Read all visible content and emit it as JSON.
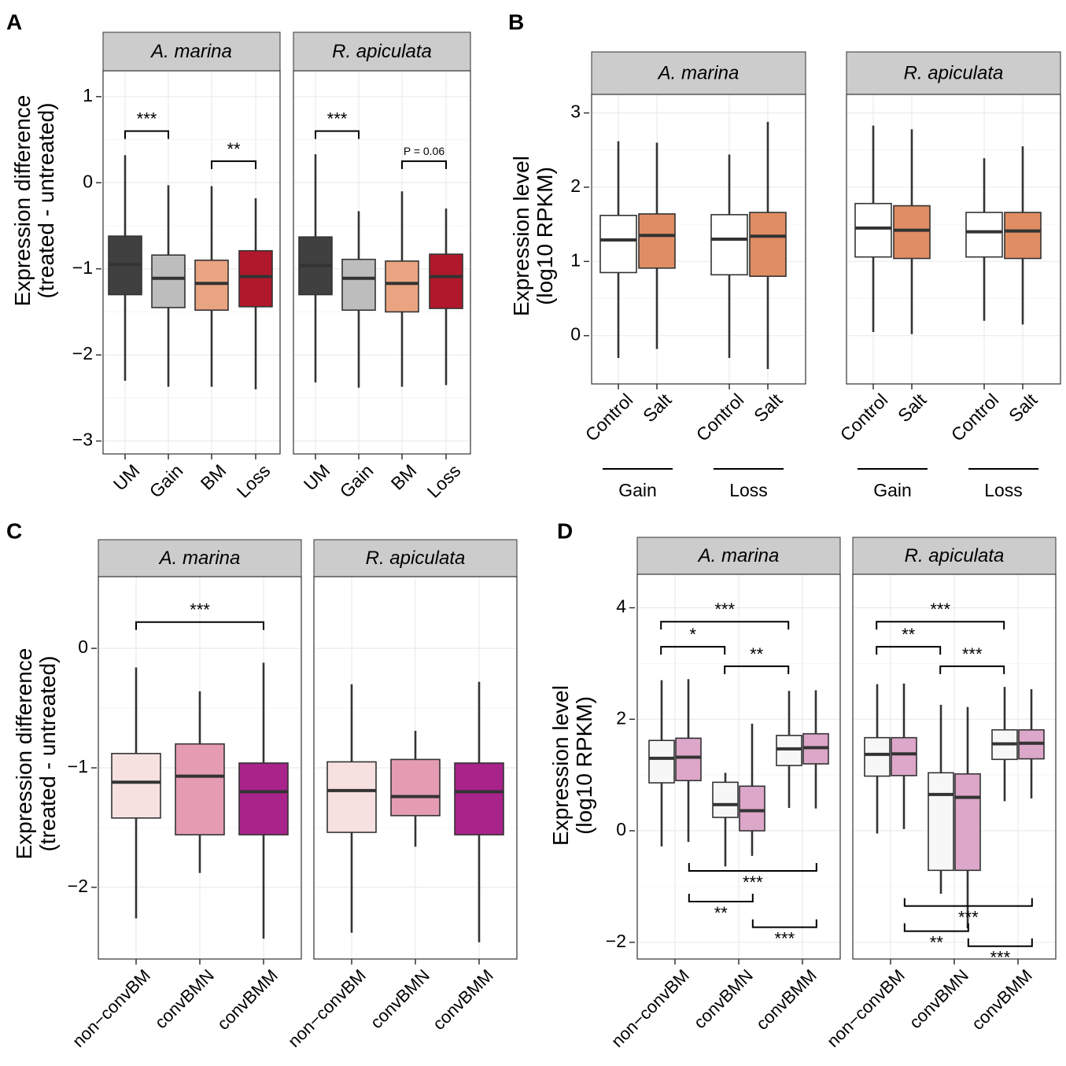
{
  "figure": {
    "colors": {
      "strip_bg": "#cccccc",
      "panel_border": "#333333",
      "grid": "#ebebeb",
      "box_stroke": "#333333"
    }
  },
  "chart_data": [
    {
      "panel_letter": "A",
      "type": "boxplot",
      "ylabel_line1": "Expression difference",
      "ylabel_line2": "(treated - untreated)",
      "ylim": [
        -3.15,
        1.3
      ],
      "yticks": [
        1,
        0,
        -1,
        -2,
        -3
      ],
      "ytick_labels": [
        "1",
        "0",
        "−1",
        "−2",
        "−3"
      ],
      "categories": [
        "UM",
        "Gain",
        "BM",
        "Loss"
      ],
      "facets": [
        {
          "title": "A. marina",
          "boxes": [
            {
              "cat": "UM",
              "whisker_low": -2.3,
              "q1": -1.3,
              "median": -0.95,
              "q3": -0.62,
              "whisker_high": 0.32,
              "color": "#404040"
            },
            {
              "cat": "Gain",
              "whisker_low": -2.37,
              "q1": -1.45,
              "median": -1.11,
              "q3": -0.84,
              "whisker_high": -0.03,
              "color": "#bdbdbd"
            },
            {
              "cat": "BM",
              "whisker_low": -2.37,
              "q1": -1.48,
              "median": -1.17,
              "q3": -0.9,
              "whisker_high": -0.04,
              "color": "#e9a482"
            },
            {
              "cat": "Loss",
              "whisker_low": -2.4,
              "q1": -1.44,
              "median": -1.09,
              "q3": -0.79,
              "whisker_high": -0.18,
              "color": "#b2182b"
            }
          ],
          "brackets": [
            {
              "from": "UM",
              "to": "Gain",
              "y": 0.6,
              "label": "***"
            },
            {
              "from": "BM",
              "to": "Loss",
              "y": 0.25,
              "label": "**"
            }
          ]
        },
        {
          "title": "R. apiculata",
          "boxes": [
            {
              "cat": "UM",
              "whisker_low": -2.32,
              "q1": -1.3,
              "median": -0.96,
              "q3": -0.63,
              "whisker_high": 0.33,
              "color": "#404040"
            },
            {
              "cat": "Gain",
              "whisker_low": -2.38,
              "q1": -1.48,
              "median": -1.11,
              "q3": -0.89,
              "whisker_high": -0.33,
              "color": "#bdbdbd"
            },
            {
              "cat": "BM",
              "whisker_low": -2.37,
              "q1": -1.5,
              "median": -1.17,
              "q3": -0.91,
              "whisker_high": -0.1,
              "color": "#e9a482"
            },
            {
              "cat": "Loss",
              "whisker_low": -2.35,
              "q1": -1.46,
              "median": -1.09,
              "q3": -0.83,
              "whisker_high": -0.3,
              "color": "#b2182b"
            }
          ],
          "brackets": [
            {
              "from": "UM",
              "to": "Gain",
              "y": 0.6,
              "label": "***"
            },
            {
              "from": "BM",
              "to": "Loss",
              "y": 0.25,
              "label": "P = 0.06",
              "small": true
            }
          ]
        }
      ]
    },
    {
      "panel_letter": "B",
      "type": "boxplot",
      "ylabel_line1": "Expression level",
      "ylabel_line2": "(log10 RPKM)",
      "ylim": [
        -0.65,
        3.25
      ],
      "yticks": [
        3,
        2,
        1,
        0
      ],
      "ytick_labels": [
        "3",
        "2",
        "1",
        "0"
      ],
      "categories": [
        "Control",
        "Salt",
        "Control",
        "Salt"
      ],
      "groups": [
        "Gain",
        "Loss"
      ],
      "facets": [
        {
          "title": "A. marina",
          "boxes": [
            {
              "cat": "Control",
              "group": "Gain",
              "whisker_low": -0.3,
              "q1": 0.85,
              "median": 1.29,
              "q3": 1.62,
              "whisker_high": 2.62,
              "color": "#ffffff"
            },
            {
              "cat": "Salt",
              "group": "Gain",
              "whisker_low": -0.18,
              "q1": 0.91,
              "median": 1.35,
              "q3": 1.64,
              "whisker_high": 2.6,
              "color": "#e08d63"
            },
            {
              "cat": "Control",
              "group": "Loss",
              "whisker_low": -0.3,
              "q1": 0.82,
              "median": 1.3,
              "q3": 1.63,
              "whisker_high": 2.44,
              "color": "#ffffff"
            },
            {
              "cat": "Salt",
              "group": "Loss",
              "whisker_low": -0.45,
              "q1": 0.8,
              "median": 1.34,
              "q3": 1.66,
              "whisker_high": 2.88,
              "color": "#e08d63"
            }
          ]
        },
        {
          "title": "R. apiculata",
          "boxes": [
            {
              "cat": "Control",
              "group": "Gain",
              "whisker_low": 0.05,
              "q1": 1.06,
              "median": 1.45,
              "q3": 1.78,
              "whisker_high": 2.83,
              "color": "#ffffff"
            },
            {
              "cat": "Salt",
              "group": "Gain",
              "whisker_low": 0.02,
              "q1": 1.04,
              "median": 1.42,
              "q3": 1.75,
              "whisker_high": 2.78,
              "color": "#e08d63"
            },
            {
              "cat": "Control",
              "group": "Loss",
              "whisker_low": 0.2,
              "q1": 1.06,
              "median": 1.4,
              "q3": 1.66,
              "whisker_high": 2.39,
              "color": "#ffffff"
            },
            {
              "cat": "Salt",
              "group": "Loss",
              "whisker_low": 0.15,
              "q1": 1.04,
              "median": 1.41,
              "q3": 1.66,
              "whisker_high": 2.55,
              "color": "#e08d63"
            }
          ]
        }
      ]
    },
    {
      "panel_letter": "C",
      "type": "boxplot",
      "ylabel_line1": "Expression difference",
      "ylabel_line2": "(treated - untreated)",
      "ylim": [
        -2.6,
        0.6
      ],
      "yticks": [
        0,
        -1,
        -2
      ],
      "ytick_labels": [
        "0",
        "−1",
        "−2"
      ],
      "categories": [
        "non−convBM",
        "convBMN",
        "convBMM"
      ],
      "facets": [
        {
          "title": "A. marina",
          "boxes": [
            {
              "cat": "non−convBM",
              "whisker_low": -2.26,
              "q1": -1.42,
              "median": -1.12,
              "q3": -0.88,
              "whisker_high": -0.16,
              "color": "#f6e0e0"
            },
            {
              "cat": "convBMN",
              "whisker_low": -1.88,
              "q1": -1.56,
              "median": -1.07,
              "q3": -0.8,
              "whisker_high": -0.36,
              "color": "#e59cb3"
            },
            {
              "cat": "convBMM",
              "whisker_low": -2.43,
              "q1": -1.56,
              "median": -1.2,
              "q3": -0.96,
              "whisker_high": -0.12,
              "color": "#a8238a"
            }
          ],
          "brackets": [
            {
              "from": "non−convBM",
              "to": "convBMM",
              "y": 0.22,
              "label": "***"
            }
          ]
        },
        {
          "title": "R. apiculata",
          "boxes": [
            {
              "cat": "non−convBM",
              "whisker_low": -2.38,
              "q1": -1.54,
              "median": -1.19,
              "q3": -0.95,
              "whisker_high": -0.3,
              "color": "#f6e0e0"
            },
            {
              "cat": "convBMN",
              "whisker_low": -1.66,
              "q1": -1.4,
              "median": -1.24,
              "q3": -0.93,
              "whisker_high": -0.69,
              "color": "#e59cb3"
            },
            {
              "cat": "convBMM",
              "whisker_low": -2.46,
              "q1": -1.56,
              "median": -1.2,
              "q3": -0.96,
              "whisker_high": -0.28,
              "color": "#a8238a"
            }
          ],
          "brackets": []
        }
      ]
    },
    {
      "panel_letter": "D",
      "type": "boxplot",
      "ylabel_line1": "Expression level",
      "ylabel_line2": "(log10 RPKM)",
      "ylim": [
        -2.3,
        4.6
      ],
      "yticks": [
        4,
        2,
        0,
        -2
      ],
      "ytick_labels": [
        "4",
        "2",
        "0",
        "−2"
      ],
      "categories": [
        "non−convBM",
        "convBMN",
        "convBMM"
      ],
      "facets": [
        {
          "title": "A. marina",
          "boxes": [
            {
              "cat": "non−convBM",
              "side": 0,
              "whisker_low": -0.28,
              "q1": 0.86,
              "median": 1.3,
              "q3": 1.62,
              "whisker_high": 2.7,
              "color": "#f7f7f7"
            },
            {
              "cat": "non−convBM",
              "side": 1,
              "whisker_low": -0.2,
              "q1": 0.9,
              "median": 1.32,
              "q3": 1.66,
              "whisker_high": 2.72,
              "color": "#dca7c9"
            },
            {
              "cat": "convBMN",
              "side": 0,
              "whisker_low": -0.64,
              "q1": 0.24,
              "median": 0.47,
              "q3": 0.87,
              "whisker_high": 1.04,
              "color": "#f7f7f7"
            },
            {
              "cat": "convBMN",
              "side": 1,
              "whisker_low": -0.45,
              "q1": 0.0,
              "median": 0.36,
              "q3": 0.8,
              "whisker_high": 1.92,
              "color": "#dca7c9"
            },
            {
              "cat": "convBMM",
              "side": 0,
              "whisker_low": 0.41,
              "q1": 1.17,
              "median": 1.47,
              "q3": 1.71,
              "whisker_high": 2.51,
              "color": "#f7f7f7"
            },
            {
              "cat": "convBMM",
              "side": 1,
              "whisker_low": 0.4,
              "q1": 1.2,
              "median": 1.49,
              "q3": 1.74,
              "whisker_high": 2.52,
              "color": "#dca7c9"
            }
          ],
          "brackets": [
            {
              "x1": -0.22,
              "x2": 1.78,
              "y": 3.75,
              "dir": "down",
              "label": "***"
            },
            {
              "x1": -0.22,
              "x2": 0.78,
              "y": 3.3,
              "dir": "down",
              "label": "*"
            },
            {
              "x1": 0.78,
              "x2": 1.78,
              "y": 2.95,
              "dir": "down",
              "label": "**"
            },
            {
              "x1": 0.22,
              "x2": 2.22,
              "y": -0.72,
              "dir": "up",
              "label": "***"
            },
            {
              "x1": 0.22,
              "x2": 1.22,
              "y": -1.27,
              "dir": "up",
              "label": "**"
            },
            {
              "x1": 1.22,
              "x2": 2.22,
              "y": -1.73,
              "dir": "up",
              "label": "***"
            }
          ]
        },
        {
          "title": "R. apiculata",
          "boxes": [
            {
              "cat": "non−convBM",
              "side": 0,
              "whisker_low": -0.05,
              "q1": 0.98,
              "median": 1.37,
              "q3": 1.67,
              "whisker_high": 2.63,
              "color": "#f7f7f7"
            },
            {
              "cat": "non−convBM",
              "side": 1,
              "whisker_low": 0.03,
              "q1": 0.99,
              "median": 1.38,
              "q3": 1.67,
              "whisker_high": 2.64,
              "color": "#dca7c9"
            },
            {
              "cat": "convBMN",
              "side": 0,
              "whisker_low": -1.13,
              "q1": -0.71,
              "median": 0.65,
              "q3": 1.04,
              "whisker_high": 2.26,
              "color": "#f7f7f7"
            },
            {
              "cat": "convBMN",
              "side": 1,
              "whisker_low": -1.75,
              "q1": -0.71,
              "median": 0.6,
              "q3": 1.02,
              "whisker_high": 2.22,
              "color": "#dca7c9"
            },
            {
              "cat": "convBMM",
              "side": 0,
              "whisker_low": 0.53,
              "q1": 1.28,
              "median": 1.56,
              "q3": 1.81,
              "whisker_high": 2.58,
              "color": "#f7f7f7"
            },
            {
              "cat": "convBMM",
              "side": 1,
              "whisker_low": 0.58,
              "q1": 1.29,
              "median": 1.57,
              "q3": 1.81,
              "whisker_high": 2.54,
              "color": "#dca7c9"
            }
          ],
          "brackets": [
            {
              "x1": -0.22,
              "x2": 1.78,
              "y": 3.75,
              "dir": "down",
              "label": "***"
            },
            {
              "x1": -0.22,
              "x2": 0.78,
              "y": 3.3,
              "dir": "down",
              "label": "**"
            },
            {
              "x1": 0.78,
              "x2": 1.78,
              "y": 2.95,
              "dir": "down",
              "label": "***"
            },
            {
              "x1": 0.22,
              "x2": 2.22,
              "y": -1.35,
              "dir": "up",
              "label": "***"
            },
            {
              "x1": 0.22,
              "x2": 1.22,
              "y": -1.8,
              "dir": "up",
              "label": "**"
            },
            {
              "x1": 1.22,
              "x2": 2.22,
              "y": -2.07,
              "dir": "up",
              "label": "***"
            }
          ]
        }
      ]
    }
  ]
}
